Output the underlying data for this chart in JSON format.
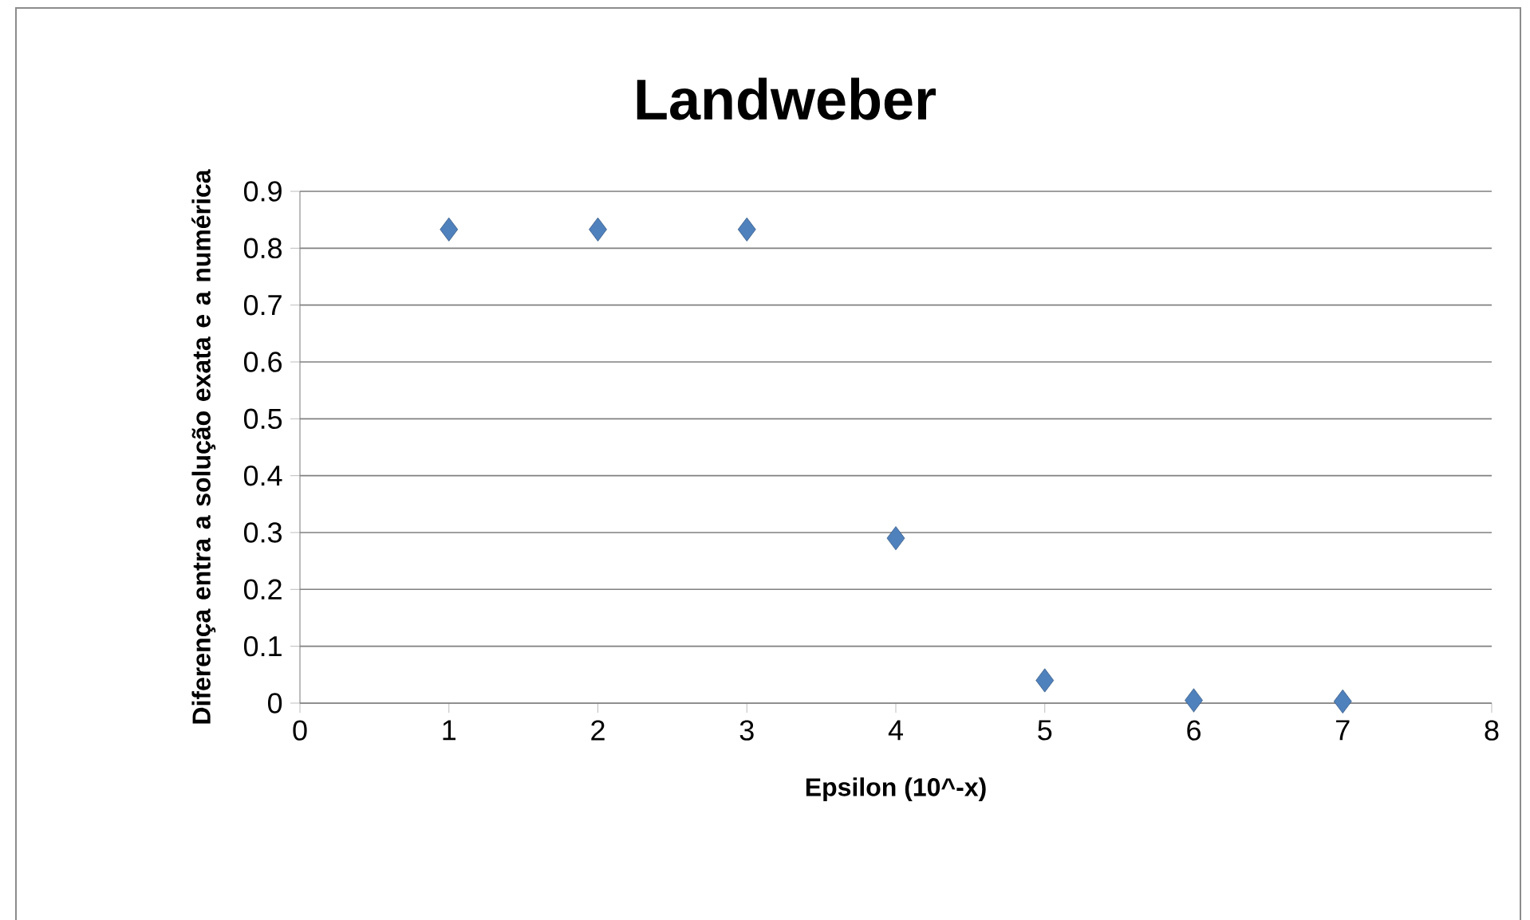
{
  "chart_data": {
    "type": "scatter",
    "title": "Landweber",
    "xlabel": "Epsilon (10^-x)",
    "ylabel": "Diferença entra a solução exata e a numérica",
    "x": [
      1,
      2,
      3,
      4,
      5,
      6,
      7
    ],
    "values": [
      0.833,
      0.833,
      0.833,
      0.29,
      0.04,
      0.005,
      0.003
    ],
    "color": "#4f81bd",
    "marker": "diamond",
    "xlim": [
      0,
      8
    ],
    "xticks": [
      0,
      1,
      2,
      3,
      4,
      5,
      6,
      7,
      8
    ],
    "ylim": [
      0,
      0.9
    ],
    "yticks": [
      0,
      0.1,
      0.2,
      0.3,
      0.4,
      0.5,
      0.6,
      0.7,
      0.8,
      0.9
    ],
    "grid": "y"
  }
}
